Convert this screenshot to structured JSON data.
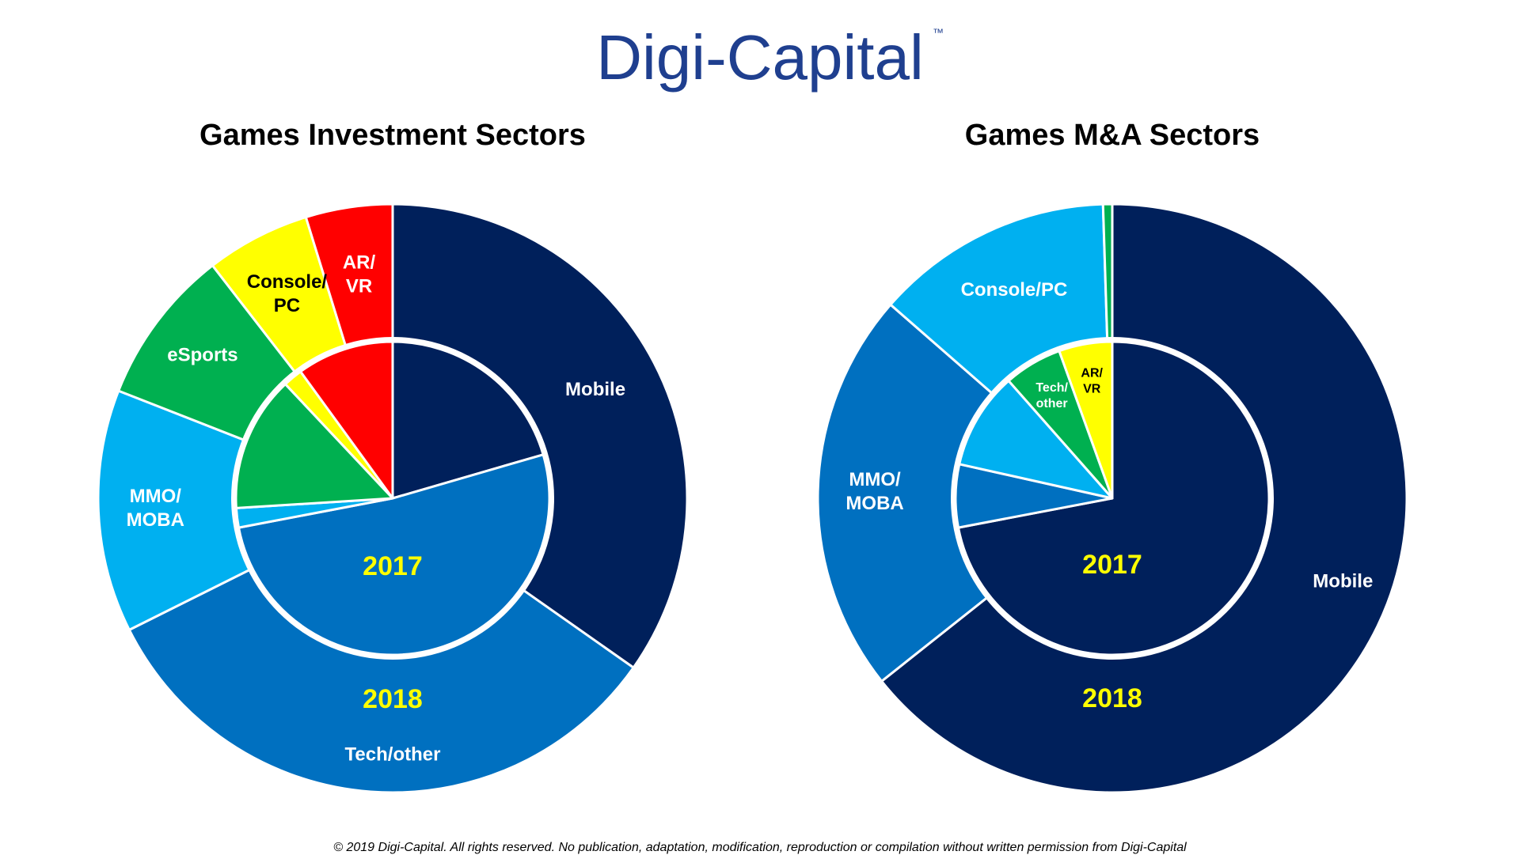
{
  "logo": {
    "text": "Digi-Capital",
    "tm": "™",
    "color": "#1f3f8f"
  },
  "footer": {
    "text": "© 2019 Digi-Capital. All rights reserved. No publication, adaptation, modification, reproduction or compilation without written permission from Digi-Capital"
  },
  "colors": {
    "Mobile": "#00205b",
    "Tech/other": "#0070c0",
    "MMO/MOBA": "#00b0f0",
    "eSports": "#00b050",
    "Console/PC": "#ffff00",
    "AR/VR": "#ff0000",
    "M&A Mobile": "#00205b",
    "M&A MMO/MOBA": "#0070c0",
    "M&A Console/PC": "#00b0f0",
    "M&A Tech/other": "#00b050",
    "M&A AR/VR": "#ffff00",
    "year_label": "#ffff00",
    "separator": "#ffffff"
  },
  "chart_data": [
    {
      "type": "pie",
      "variant": "nested-donut",
      "title": "Games Investment Sectors",
      "rings": [
        {
          "name": "2018",
          "position": "outer",
          "slices": [
            {
              "label": "Mobile",
              "value": 36.5,
              "color_key": "Mobile"
            },
            {
              "label": "Tech/other",
              "value": 34.5,
              "color_key": "Tech/other"
            },
            {
              "label": "MMO/MOBA",
              "value": 14.0,
              "color_key": "MMO/MOBA"
            },
            {
              "label": "eSports",
              "value": 9.0,
              "color_key": "eSports"
            },
            {
              "label": "Console/PC",
              "value": 6.0,
              "color_key": "Console/PC"
            },
            {
              "label": "AR/VR",
              "value": 5.0,
              "color_key": "AR/VR"
            }
          ]
        },
        {
          "name": "2017",
          "position": "inner",
          "slices": [
            {
              "label": "Mobile",
              "value": 20.5,
              "color_key": "Mobile"
            },
            {
              "label": "Tech/other",
              "value": 51.5,
              "color_key": "Tech/other"
            },
            {
              "label": "MMO/MOBA",
              "value": 2.0,
              "color_key": "MMO/MOBA"
            },
            {
              "label": "eSports",
              "value": 14.0,
              "color_key": "eSports"
            },
            {
              "label": "Console/PC",
              "value": 2.0,
              "color_key": "Console/PC"
            },
            {
              "label": "AR/VR",
              "value": 10.0,
              "color_key": "AR/VR"
            }
          ]
        }
      ],
      "slice_labels": [
        {
          "text": "Mobile",
          "lines": [
            "Mobile"
          ],
          "ring": "outer",
          "slice": 0,
          "color": "#ffffff"
        },
        {
          "text": "Tech/other",
          "lines": [
            "Tech/other"
          ],
          "ring": "outer",
          "slice": 1,
          "color": "#ffffff"
        },
        {
          "text": "MMO/MOBA",
          "lines": [
            "MMO/",
            "MOBA"
          ],
          "ring": "outer",
          "slice": 2,
          "color": "#ffffff"
        },
        {
          "text": "eSports",
          "lines": [
            "eSports"
          ],
          "ring": "outer",
          "slice": 3,
          "color": "#ffffff"
        },
        {
          "text": "Console/PC",
          "lines": [
            "Console/",
            "PC"
          ],
          "ring": "outer",
          "slice": 4,
          "color": "#000000"
        },
        {
          "text": "AR/VR",
          "lines": [
            "AR/",
            "VR"
          ],
          "ring": "outer",
          "slice": 5,
          "color": "#ffffff"
        }
      ],
      "year_labels": [
        {
          "text": "2017",
          "ring": "inner"
        },
        {
          "text": "2018",
          "ring": "outer"
        }
      ]
    },
    {
      "type": "pie",
      "variant": "nested-donut",
      "title": "Games M&A Sectors",
      "rings": [
        {
          "name": "2018",
          "position": "outer",
          "slices": [
            {
              "label": "Mobile",
              "value": 64.0,
              "color_key": "M&A Mobile"
            },
            {
              "label": "MMO/MOBA",
              "value": 22.0,
              "color_key": "M&A MMO/MOBA"
            },
            {
              "label": "Console/PC",
              "value": 13.0,
              "color_key": "M&A Console/PC"
            },
            {
              "label": "Tech/other",
              "value": 0.5,
              "color_key": "M&A Tech/other"
            }
          ]
        },
        {
          "name": "2017",
          "position": "inner",
          "slices": [
            {
              "label": "Mobile",
              "value": 72.0,
              "color_key": "M&A Mobile"
            },
            {
              "label": "MMO/MOBA",
              "value": 6.5,
              "color_key": "M&A MMO/MOBA"
            },
            {
              "label": "Console/PC",
              "value": 10.0,
              "color_key": "M&A Console/PC"
            },
            {
              "label": "Tech/other",
              "value": 6.0,
              "color_key": "M&A Tech/other"
            },
            {
              "label": "AR/VR",
              "value": 5.5,
              "color_key": "M&A AR/VR"
            }
          ]
        }
      ],
      "slice_labels": [
        {
          "text": "Mobile",
          "lines": [
            "Mobile"
          ],
          "ring": "outer",
          "slice": 0,
          "color": "#ffffff"
        },
        {
          "text": "MMO/MOBA",
          "lines": [
            "MMO/",
            "MOBA"
          ],
          "ring": "outer",
          "slice": 1,
          "color": "#ffffff"
        },
        {
          "text": "Console/PC",
          "lines": [
            "Console/PC"
          ],
          "ring": "outer",
          "slice": 2,
          "color": "#ffffff"
        },
        {
          "text": "Tech/other",
          "lines": [
            "Tech/",
            "other"
          ],
          "ring": "inner",
          "slice": 3,
          "color": "#ffffff"
        },
        {
          "text": "AR/VR",
          "lines": [
            "AR/",
            "VR"
          ],
          "ring": "inner",
          "slice": 4,
          "color": "#000000"
        }
      ],
      "year_labels": [
        {
          "text": "2017",
          "ring": "inner"
        },
        {
          "text": "2018",
          "ring": "outer"
        }
      ]
    }
  ]
}
